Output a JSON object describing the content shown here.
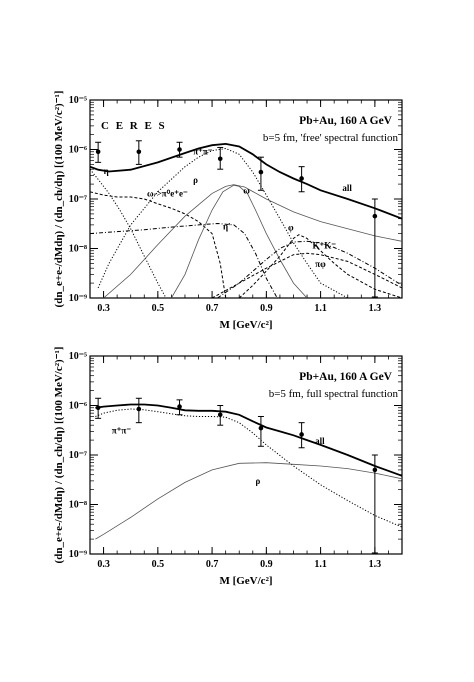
{
  "chart_data": [
    {
      "type": "line",
      "panel": "top",
      "title": "",
      "annotations": {
        "experiment": "C E R E S",
        "system": "Pb+Au, 160 A GeV",
        "condition": "b=5 fm, 'free' spectral function"
      },
      "xlabel": "M [GeV/c²]",
      "ylabel": "(dn_e+e-/dMdη) / (dn_ch/dη) [(100 MeV/c²)⁻¹]",
      "xlim": [
        0.25,
        1.4
      ],
      "ylim": [
        1e-09,
        1e-05
      ],
      "yscale": "log",
      "x_ticks": [
        "0.3",
        "0.5",
        "0.7",
        "0.9",
        "1.1",
        "1.3"
      ],
      "y_ticks": [
        "10⁻⁹",
        "10⁻⁸",
        "10⁻⁷",
        "10⁻⁶",
        "10⁻⁵"
      ],
      "data_points": [
        {
          "x": 0.28,
          "y": 9e-07,
          "ylo": 5.5e-07,
          "yhi": 1.4e-06
        },
        {
          "x": 0.43,
          "y": 9e-07,
          "ylo": 5e-07,
          "yhi": 1.5e-06
        },
        {
          "x": 0.58,
          "y": 1e-06,
          "ylo": 7e-07,
          "yhi": 1.4e-06
        },
        {
          "x": 0.73,
          "y": 6.5e-07,
          "ylo": 4e-07,
          "yhi": 1.1e-06
        },
        {
          "x": 0.88,
          "y": 3.5e-07,
          "ylo": 1.5e-07,
          "yhi": 7e-07
        },
        {
          "x": 1.03,
          "y": 2.6e-07,
          "ylo": 1.4e-07,
          "yhi": 4.5e-07
        },
        {
          "x": 1.3,
          "y": 4.5e-08,
          "ylo": 1.05e-09,
          "yhi": 1e-07
        }
      ],
      "series": [
        {
          "name": "all",
          "style": "thick",
          "x": [
            0.25,
            0.28,
            0.32,
            0.4,
            0.5,
            0.6,
            0.65,
            0.7,
            0.75,
            0.8,
            0.85,
            0.9,
            0.95,
            1.0,
            1.05,
            1.1,
            1.2,
            1.3,
            1.4
          ],
          "y": [
            4.5e-07,
            3.9e-07,
            3.6e-07,
            3.9e-07,
            5.5e-07,
            8.5e-07,
            1.05e-06,
            1.22e-06,
            1.3e-06,
            1.15e-06,
            8e-07,
            5e-07,
            3.5e-07,
            2.6e-07,
            2e-07,
            1.5e-07,
            1e-07,
            6.5e-08,
            4e-08
          ]
        },
        {
          "name": "π⁺π⁻",
          "style": "dotted",
          "x": [
            0.28,
            0.32,
            0.4,
            0.5,
            0.6,
            0.65,
            0.7,
            0.75,
            0.8,
            0.85,
            0.9,
            0.95,
            1.0,
            1.05,
            1.1,
            1.2
          ],
          "y": [
            1.6e-09,
            5e-09,
            3e-08,
            1.4e-07,
            4.5e-07,
            7e-07,
            9.5e-07,
            1.05e-06,
            8e-07,
            3.5e-07,
            1.2e-07,
            4e-08,
            1.3e-08,
            5e-09,
            2e-09,
            1e-09
          ]
        },
        {
          "name": "η",
          "style": "dotted",
          "x": [
            0.25,
            0.28,
            0.32,
            0.36,
            0.4,
            0.45,
            0.5,
            0.53
          ],
          "y": [
            4e-07,
            2.5e-07,
            1.3e-07,
            6e-08,
            2.5e-08,
            7e-09,
            2e-09,
            1e-09
          ]
        },
        {
          "name": "ω→π⁰e⁺e⁻",
          "style": "dashed",
          "x": [
            0.25,
            0.3,
            0.35,
            0.4,
            0.45,
            0.5,
            0.55,
            0.6,
            0.65,
            0.7,
            0.73,
            0.75
          ],
          "y": [
            1.4e-07,
            1.2e-07,
            1.1e-07,
            1.1e-07,
            1e-07,
            8e-08,
            6.5e-08,
            5e-08,
            3.5e-08,
            2e-08,
            5e-09,
            1e-09
          ]
        },
        {
          "name": "ρ",
          "style": "thin",
          "x": [
            0.3,
            0.4,
            0.5,
            0.6,
            0.7,
            0.75,
            0.78,
            0.82,
            0.9,
            1.0,
            1.1,
            1.2,
            1.3,
            1.4
          ],
          "y": [
            1e-09,
            3e-09,
            1.2e-08,
            4.5e-08,
            1.3e-07,
            1.8e-07,
            1.95e-07,
            1.75e-07,
            1e-07,
            5.5e-08,
            3.5e-08,
            2.5e-08,
            1.8e-08,
            1.4e-08
          ]
        },
        {
          "name": "ω",
          "style": "thin",
          "x": [
            0.55,
            0.6,
            0.65,
            0.7,
            0.74,
            0.78,
            0.8,
            0.83,
            0.86,
            0.9,
            0.95,
            1.0,
            1.05
          ],
          "y": [
            1e-09,
            3e-09,
            1.5e-08,
            6e-08,
            1.4e-07,
            1.9e-07,
            1.8e-07,
            1.3e-07,
            6e-08,
            2e-08,
            6e-09,
            2e-09,
            1e-09
          ]
        },
        {
          "name": "η'",
          "style": "dashdot",
          "x": [
            0.25,
            0.35,
            0.45,
            0.55,
            0.65,
            0.72,
            0.78,
            0.82,
            0.86,
            0.9,
            0.94
          ],
          "y": [
            2e-08,
            2.2e-08,
            2.4e-08,
            2.7e-08,
            3e-08,
            3.2e-08,
            3e-08,
            2e-08,
            8e-09,
            2.5e-09,
            1e-09
          ]
        },
        {
          "name": "φ",
          "style": "dashed",
          "x": [
            0.8,
            0.85,
            0.9,
            0.95,
            1.0,
            1.02,
            1.05,
            1.1,
            1.15,
            1.2,
            1.3,
            1.4
          ],
          "y": [
            1e-09,
            1.8e-09,
            3.5e-09,
            7e-09,
            1.6e-08,
            1.9e-08,
            1.6e-08,
            9e-09,
            5e-09,
            3e-09,
            1.5e-09,
            1e-09
          ]
        },
        {
          "name": "K⁺K⁻",
          "style": "dashdot",
          "x": [
            0.72,
            0.8,
            0.9,
            0.95,
            1.0,
            1.05,
            1.1,
            1.15,
            1.2,
            1.3,
            1.4
          ],
          "y": [
            1e-09,
            2e-09,
            6e-09,
            1e-08,
            1.35e-08,
            1.4e-08,
            1.3e-08,
            1.05e-08,
            8e-09,
            4e-09,
            1.8e-09
          ]
        },
        {
          "name": "πφ",
          "style": "dashed",
          "x": [
            0.7,
            0.8,
            0.9,
            1.0,
            1.05,
            1.1,
            1.2,
            1.3,
            1.4
          ],
          "y": [
            1e-09,
            2e-09,
            4e-09,
            7.5e-09,
            8e-09,
            7.5e-09,
            5.5e-09,
            3e-09,
            1.6e-09
          ]
        }
      ],
      "labels": [
        {
          "text": "all",
          "x": 1.18,
          "y": 1.45e-07
        },
        {
          "text": "π⁺π⁻",
          "x": 0.63,
          "y": 8e-07
        },
        {
          "text": "η",
          "x": 0.3,
          "y": 3.2e-07
        },
        {
          "text": "ω->π⁰e⁺e⁻",
          "x": 0.46,
          "y": 1.12e-07
        },
        {
          "text": "ρ",
          "x": 0.63,
          "y": 2.1e-07
        },
        {
          "text": "ω",
          "x": 0.815,
          "y": 1.3e-07
        },
        {
          "text": "η'",
          "x": 0.74,
          "y": 2.4e-08
        },
        {
          "text": "φ",
          "x": 0.98,
          "y": 2.3e-08
        },
        {
          "text": "K⁺K⁻",
          "x": 1.07,
          "y": 1e-08
        },
        {
          "text": "πφ",
          "x": 1.08,
          "y": 4.2e-09
        }
      ]
    },
    {
      "type": "line",
      "panel": "bottom",
      "title": "",
      "annotations": {
        "system": "Pb+Au, 160 A GeV",
        "condition": "b=5 fm, full spectral function"
      },
      "xlabel": "M [GeV/c²]",
      "ylabel": "(dn_e+e-/dMdη) / (dn_ch/dη) [(100 MeV/c²)⁻¹]",
      "xlim": [
        0.25,
        1.4
      ],
      "ylim": [
        1e-09,
        1e-05
      ],
      "yscale": "log",
      "x_ticks": [
        "0.3",
        "0.5",
        "0.7",
        "0.9",
        "1.1",
        "1.3"
      ],
      "y_ticks": [
        "10⁻⁹",
        "10⁻⁸",
        "10⁻⁷",
        "10⁻⁶",
        "10⁻⁵"
      ],
      "data_points": [
        {
          "x": 0.28,
          "y": 9e-07,
          "ylo": 5.5e-07,
          "yhi": 1.4e-06
        },
        {
          "x": 0.43,
          "y": 8.5e-07,
          "ylo": 4.5e-07,
          "yhi": 1.4e-06
        },
        {
          "x": 0.58,
          "y": 9.5e-07,
          "ylo": 6.5e-07,
          "yhi": 1.3e-06
        },
        {
          "x": 0.73,
          "y": 6.5e-07,
          "ylo": 4e-07,
          "yhi": 1e-06
        },
        {
          "x": 0.88,
          "y": 3.5e-07,
          "ylo": 1.5e-07,
          "yhi": 6e-07
        },
        {
          "x": 1.03,
          "y": 2.6e-07,
          "ylo": 1.4e-07,
          "yhi": 4.5e-07
        },
        {
          "x": 1.3,
          "y": 5e-08,
          "ylo": 1.05e-09,
          "yhi": 1e-07
        }
      ],
      "series": [
        {
          "name": "all",
          "style": "thick",
          "x": [
            0.27,
            0.3,
            0.35,
            0.4,
            0.45,
            0.5,
            0.55,
            0.6,
            0.65,
            0.7,
            0.75,
            0.8,
            0.85,
            0.9,
            0.95,
            1.0,
            1.05,
            1.1,
            1.2,
            1.3,
            1.4
          ],
          "y": [
            9e-07,
            9.5e-07,
            1e-06,
            1.05e-06,
            1.05e-06,
            1e-06,
            9e-07,
            8e-07,
            7.8e-07,
            7.8e-07,
            7.5e-07,
            6.5e-07,
            4.8e-07,
            3.6e-07,
            3e-07,
            2.5e-07,
            2e-07,
            1.6e-07,
            1e-07,
            6e-08,
            3.8e-08
          ]
        },
        {
          "name": "π⁺π⁻",
          "style": "dotted",
          "x": [
            0.27,
            0.3,
            0.35,
            0.4,
            0.45,
            0.5,
            0.55,
            0.6,
            0.65,
            0.7,
            0.75,
            0.8,
            0.85,
            0.9,
            1.0,
            1.1,
            1.2,
            1.3,
            1.4
          ],
          "y": [
            6e-07,
            7e-07,
            8e-07,
            8.5e-07,
            8.2e-07,
            7.5e-07,
            6.8e-07,
            6.2e-07,
            6e-07,
            6e-07,
            5.8e-07,
            4.5e-07,
            2.8e-07,
            1.6e-07,
            6e-08,
            2.5e-08,
            1.2e-08,
            6e-09,
            3.5e-09
          ]
        },
        {
          "name": "ρ",
          "style": "thin",
          "x": [
            0.27,
            0.3,
            0.4,
            0.5,
            0.6,
            0.7,
            0.8,
            0.9,
            1.0,
            1.1,
            1.2,
            1.3,
            1.4
          ],
          "y": [
            2e-09,
            2.5e-09,
            5.5e-09,
            1.3e-08,
            2.8e-08,
            5e-08,
            6.8e-08,
            7e-08,
            6.5e-08,
            6e-08,
            5.3e-08,
            4.3e-08,
            3.3e-08
          ]
        }
      ],
      "labels": [
        {
          "text": "all",
          "x": 1.08,
          "y": 1.65e-07
        },
        {
          "text": "π⁺π⁻",
          "x": 0.33,
          "y": 2.7e-07
        },
        {
          "text": "ρ",
          "x": 0.86,
          "y": 2.6e-08
        }
      ]
    }
  ]
}
